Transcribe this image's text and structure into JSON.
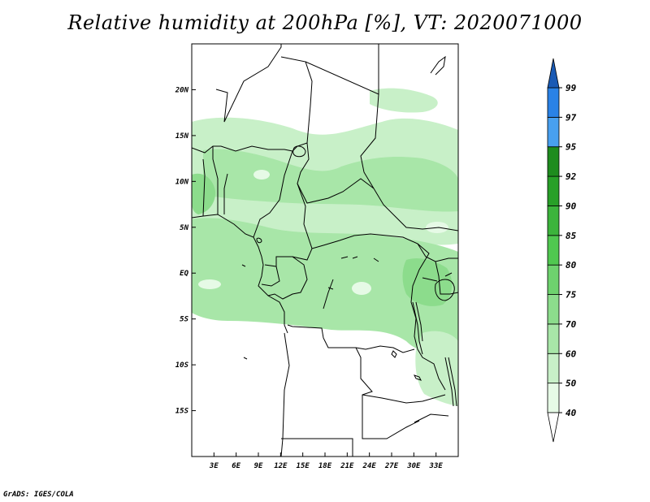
{
  "title": "Relative humidity at 200hPa [%], VT: 2020071000",
  "credit": "GrADS: IGES/COLA",
  "map": {
    "lon_range": [
      0,
      36
    ],
    "lat_range": [
      -20,
      25
    ],
    "lat_ticks": [
      {
        "value": 20,
        "label": "20N"
      },
      {
        "value": 15,
        "label": "15N"
      },
      {
        "value": 10,
        "label": "10N"
      },
      {
        "value": 5,
        "label": "5N"
      },
      {
        "value": 0,
        "label": "EQ"
      },
      {
        "value": -5,
        "label": "5S"
      },
      {
        "value": -10,
        "label": "10S"
      },
      {
        "value": -15,
        "label": "15S"
      }
    ],
    "lon_ticks": [
      {
        "value": 3,
        "label": "3E"
      },
      {
        "value": 6,
        "label": "6E"
      },
      {
        "value": 9,
        "label": "9E"
      },
      {
        "value": 12,
        "label": "12E"
      },
      {
        "value": 15,
        "label": "15E"
      },
      {
        "value": 18,
        "label": "18E"
      },
      {
        "value": 21,
        "label": "21E"
      },
      {
        "value": 24,
        "label": "24E"
      },
      {
        "value": 27,
        "label": "27E"
      },
      {
        "value": 30,
        "label": "30E"
      },
      {
        "value": 33,
        "label": "33E"
      }
    ]
  },
  "colorbar": {
    "levels": [
      {
        "label": "40",
        "color": "#e6fae6"
      },
      {
        "label": "50",
        "color": "#c8f0c8"
      },
      {
        "label": "60",
        "color": "#a8e6a8"
      },
      {
        "label": "70",
        "color": "#8cdc8c"
      },
      {
        "label": "75",
        "color": "#6ed26e"
      },
      {
        "label": "80",
        "color": "#50c850"
      },
      {
        "label": "85",
        "color": "#3cb43c"
      },
      {
        "label": "90",
        "color": "#28a028"
      },
      {
        "label": "92",
        "color": "#1e8c1e"
      },
      {
        "label": "95",
        "color": "#48a0f0"
      },
      {
        "label": "97",
        "color": "#2a82e6"
      },
      {
        "label": "99",
        "color": "#1464c8"
      }
    ],
    "below_color": "#ffffff",
    "above_color": "#1a5ab4"
  }
}
